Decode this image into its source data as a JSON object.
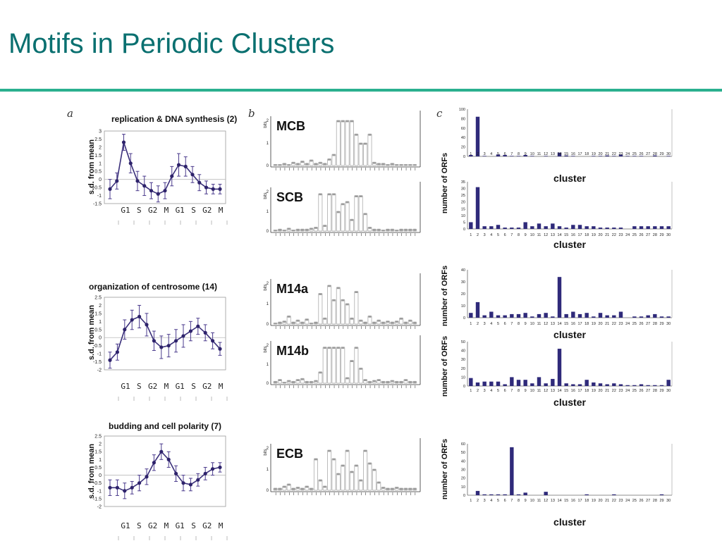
{
  "slide": {
    "title": "Motifs in Periodic Clusters"
  },
  "panels": {
    "a": "a",
    "b": "b",
    "c": "c"
  },
  "chart_data": [
    {
      "type": "line",
      "title": "replication & DNA synthesis (2)",
      "ylabel": "s.d. from mean",
      "x_labels": [
        "G1",
        "S",
        "G2",
        "M",
        "G1",
        "S",
        "G2",
        "M"
      ],
      "ylim": [
        -1.5,
        3
      ],
      "ytick_labels": [
        "3",
        "2.5",
        "2",
        "1.5",
        "1",
        "0.5",
        "0",
        "-0.5",
        "-1",
        "-1.5"
      ],
      "y_ticks": [
        3,
        2.5,
        2,
        1.5,
        1,
        0.5,
        0,
        -0.5,
        -1,
        -1.5
      ],
      "series": [
        {
          "values": [
            -0.6,
            -0.1,
            2.3,
            1.0,
            -0.1,
            -0.4,
            -0.7,
            -0.9,
            -0.7,
            0.2,
            0.9,
            0.8,
            0.3,
            -0.2,
            -0.5,
            -0.6,
            -0.6
          ],
          "errors": [
            0.6,
            0.5,
            0.5,
            0.6,
            0.6,
            0.6,
            0.5,
            0.5,
            0.5,
            0.6,
            0.7,
            0.6,
            0.5,
            0.5,
            0.4,
            0.3,
            0.3
          ]
        }
      ]
    },
    {
      "type": "line",
      "title": "organization of centrosome (14)",
      "ylabel": "s.d. from mean",
      "x_labels": [
        "G1",
        "S",
        "G2",
        "M",
        "G1",
        "S",
        "G2",
        "M"
      ],
      "ylim": [
        -2,
        2.5
      ],
      "ytick_labels": [
        "2.5",
        "2",
        "1.5",
        "1",
        "0.5",
        "0",
        "-0.5",
        "-1",
        "-1.5",
        "-2"
      ],
      "y_ticks": [
        2.5,
        2,
        1.5,
        1,
        0.5,
        0,
        -0.5,
        -1,
        -1.5,
        -2
      ],
      "series": [
        {
          "values": [
            -1.4,
            -0.9,
            0.5,
            1.1,
            1.3,
            0.8,
            -0.2,
            -0.6,
            -0.5,
            -0.2,
            0.1,
            0.4,
            0.7,
            0.3,
            -0.2,
            -0.7
          ],
          "errors": [
            0.5,
            0.5,
            0.6,
            0.6,
            0.7,
            0.7,
            0.6,
            0.7,
            0.7,
            0.7,
            0.7,
            0.6,
            0.5,
            0.5,
            0.5,
            0.4
          ]
        }
      ]
    },
    {
      "type": "line",
      "title": "budding and cell polarity (7)",
      "ylabel": "s.d. from mean",
      "x_labels": [
        "G1",
        "S",
        "G2",
        "M",
        "G1",
        "S",
        "G2",
        "M"
      ],
      "ylim": [
        -2,
        2.5
      ],
      "ytick_labels": [
        "2.5",
        "2",
        "1.5",
        "1",
        "0.5",
        "0",
        "-0.5",
        "-1",
        "-1.5",
        "-2"
      ],
      "y_ticks": [
        2.5,
        2,
        1.5,
        1,
        0.5,
        0,
        -0.5,
        -1,
        -1.5,
        -2
      ],
      "series": [
        {
          "values": [
            -0.8,
            -0.8,
            -1.0,
            -0.8,
            -0.5,
            -0.1,
            0.8,
            1.5,
            1.0,
            0.1,
            -0.5,
            -0.6,
            -0.3,
            0.1,
            0.4,
            0.5
          ],
          "errors": [
            0.5,
            0.5,
            0.5,
            0.4,
            0.5,
            0.5,
            0.5,
            0.5,
            0.5,
            0.5,
            0.5,
            0.4,
            0.4,
            0.4,
            0.4,
            0.3
          ]
        }
      ]
    },
    {
      "type": "bar",
      "ylabel": "number of ORFs",
      "xlabel": "cluster",
      "categories": [
        "1",
        "2",
        "3",
        "4",
        "5",
        "6",
        "7",
        "8",
        "9",
        "10",
        "11",
        "12",
        "13",
        "14",
        "15",
        "16",
        "17",
        "18",
        "19",
        "20",
        "21",
        "22",
        "23",
        "24",
        "25",
        "26",
        "27",
        "28",
        "29",
        "30"
      ],
      "ylim": [
        0,
        100
      ],
      "ytick_labels": [
        "100",
        "80",
        "60",
        "40",
        "20",
        "0"
      ],
      "y_ticks": [
        100,
        80,
        60,
        40,
        20,
        0
      ],
      "values": [
        3,
        84,
        1,
        0,
        4,
        3,
        1,
        1,
        3,
        1,
        0,
        1,
        0,
        8,
        2,
        1,
        0,
        0,
        1,
        1,
        2,
        1,
        4,
        1,
        1,
        1,
        0,
        2,
        0,
        1
      ]
    },
    {
      "type": "bar",
      "ylabel": "number of ORFs",
      "xlabel": "cluster",
      "categories": [
        "1",
        "2",
        "3",
        "4",
        "5",
        "6",
        "7",
        "8",
        "9",
        "10",
        "11",
        "12",
        "13",
        "14",
        "15",
        "16",
        "17",
        "18",
        "19",
        "20",
        "21",
        "22",
        "23",
        "24",
        "25",
        "26",
        "27",
        "28",
        "29",
        "30"
      ],
      "ylim": [
        0,
        35
      ],
      "ytick_labels": [
        "35",
        "30",
        "25",
        "20",
        "15",
        "10",
        "5",
        "0"
      ],
      "y_ticks": [
        35,
        30,
        25,
        20,
        15,
        10,
        5,
        0
      ],
      "values": [
        5,
        31,
        2,
        2,
        3,
        1,
        1,
        1,
        5,
        2,
        4,
        2,
        4,
        2,
        1,
        3,
        3,
        2,
        2,
        1,
        1,
        1,
        1,
        0,
        2,
        2,
        2,
        2,
        2,
        2
      ]
    },
    {
      "type": "bar",
      "ylabel": "number of ORFs",
      "xlabel": "cluster",
      "categories": [
        "1",
        "2",
        "3",
        "4",
        "5",
        "6",
        "7",
        "8",
        "9",
        "10",
        "11",
        "12",
        "13",
        "14",
        "15",
        "16",
        "17",
        "18",
        "19",
        "20",
        "21",
        "22",
        "23",
        "24",
        "25",
        "26",
        "27",
        "28",
        "29",
        "30"
      ],
      "ylim": [
        0,
        40
      ],
      "ytick_labels": [
        "40",
        "30",
        "20",
        "10",
        "0"
      ],
      "y_ticks": [
        40,
        30,
        20,
        10,
        0
      ],
      "values": [
        4,
        13,
        2,
        5,
        2,
        2,
        3,
        3,
        4,
        1,
        3,
        4,
        1,
        34,
        3,
        5,
        3,
        4,
        1,
        4,
        2,
        2,
        5,
        0,
        1,
        1,
        2,
        3,
        1,
        1
      ]
    },
    {
      "type": "bar",
      "ylabel": "number of ORFs",
      "xlabel": "cluster",
      "categories": [
        "1",
        "2",
        "3",
        "4",
        "5",
        "6",
        "7",
        "8",
        "9",
        "10",
        "11",
        "12",
        "13",
        "14",
        "15",
        "16",
        "17",
        "18",
        "19",
        "20",
        "21",
        "22",
        "23",
        "24",
        "25",
        "26",
        "27",
        "28",
        "29",
        "30"
      ],
      "ylim": [
        0,
        50
      ],
      "ytick_labels": [
        "50",
        "40",
        "30",
        "20",
        "10",
        "0"
      ],
      "y_ticks": [
        50,
        40,
        30,
        20,
        10,
        0
      ],
      "values": [
        9,
        4,
        5,
        5,
        5,
        2,
        10,
        7,
        7,
        3,
        10,
        3,
        8,
        42,
        3,
        2,
        2,
        7,
        4,
        3,
        2,
        3,
        2,
        1,
        1,
        2,
        1,
        1,
        1,
        7
      ]
    },
    {
      "type": "bar",
      "ylabel": "number of ORFs",
      "xlabel": "cluster",
      "categories": [
        "1",
        "2",
        "3",
        "4",
        "5",
        "6",
        "7",
        "8",
        "9",
        "10",
        "11",
        "12",
        "13",
        "14",
        "15",
        "16",
        "17",
        "18",
        "19",
        "20",
        "21",
        "22",
        "23",
        "24",
        "25",
        "26",
        "27",
        "28",
        "29",
        "30"
      ],
      "ylim": [
        0,
        60
      ],
      "ytick_labels": [
        "60",
        "50",
        "40",
        "30",
        "20",
        "10",
        "0"
      ],
      "y_ticks": [
        60,
        50,
        40,
        30,
        20,
        10,
        0
      ],
      "values": [
        0,
        5,
        1,
        1,
        1,
        1,
        56,
        1,
        3,
        0,
        0,
        4,
        0,
        0,
        0,
        0,
        0,
        1,
        0,
        0,
        0,
        1,
        0,
        0,
        0,
        0,
        0,
        0,
        1,
        0
      ]
    }
  ],
  "logos": [
    {
      "name": "MCB",
      "bits_label": "bits",
      "ytick_labels": [
        "2",
        "1",
        "0"
      ],
      "heights": [
        0.05,
        0.05,
        0.1,
        0.05,
        0.15,
        0.1,
        0.2,
        0.1,
        0.25,
        0.1,
        0.15,
        0.1,
        0.3,
        0.5,
        2.0,
        2.0,
        2.0,
        2.0,
        1.4,
        1.0,
        1.0,
        1.4,
        0.15,
        0.1,
        0.1,
        0.05,
        0.1,
        0.05,
        0.05,
        0.05,
        0.05,
        0.05
      ]
    },
    {
      "name": "SCB",
      "bits_label": "bits",
      "ytick_labels": [
        "2",
        "1",
        "0"
      ],
      "heights": [
        0.05,
        0.1,
        0.05,
        0.15,
        0.05,
        0.1,
        0.1,
        0.1,
        0.15,
        0.2,
        1.9,
        0.3,
        1.9,
        1.9,
        1.0,
        1.4,
        1.5,
        0.6,
        1.8,
        1.8,
        0.9,
        0.2,
        0.1,
        0.1,
        0.05,
        0.1,
        0.1,
        0.05,
        0.1,
        0.1,
        0.1,
        0.1
      ]
    },
    {
      "name": "M14a",
      "bits_label": "bits",
      "ytick_labels": [
        "2",
        "1",
        "0"
      ],
      "heights": [
        0.05,
        0.1,
        0.15,
        0.4,
        0.1,
        0.2,
        0.1,
        0.25,
        0.05,
        0.1,
        1.5,
        0.3,
        1.9,
        1.2,
        1.8,
        1.2,
        1.0,
        0.3,
        1.6,
        0.2,
        0.1,
        0.4,
        0.1,
        0.2,
        0.1,
        0.15,
        0.1,
        0.15,
        0.3,
        0.1,
        0.2,
        0.1
      ]
    },
    {
      "name": "M14b",
      "bits_label": "bits",
      "ytick_labels": [
        "2",
        "1",
        "0"
      ],
      "heights": [
        0.1,
        0.2,
        0.05,
        0.15,
        0.1,
        0.2,
        0.25,
        0.1,
        0.1,
        0.15,
        0.6,
        1.9,
        1.9,
        1.9,
        1.9,
        1.9,
        0.3,
        1.2,
        1.9,
        0.8,
        0.2,
        0.1,
        0.15,
        0.2,
        0.1,
        0.1,
        0.15,
        0.1,
        0.1,
        0.2,
        0.1,
        0.1
      ]
    },
    {
      "name": "ECB",
      "bits_label": "bits",
      "ytick_labels": [
        "2",
        "1",
        "0"
      ],
      "heights": [
        0.1,
        0.1,
        0.2,
        0.3,
        0.1,
        0.15,
        0.1,
        0.2,
        0.1,
        1.5,
        0.5,
        0.2,
        1.9,
        1.5,
        0.8,
        1.2,
        1.9,
        0.9,
        1.2,
        0.5,
        1.9,
        1.3,
        1.0,
        0.4,
        0.15,
        0.1,
        0.1,
        0.15,
        0.1,
        0.1,
        0.1,
        0.1
      ]
    }
  ]
}
